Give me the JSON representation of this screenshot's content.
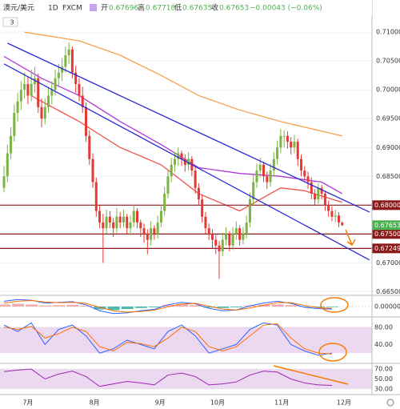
{
  "chart_data": {
    "type": "candlestick",
    "symbol": "澳元/美元",
    "interval": "1D",
    "source": "FXCM",
    "open_label": "开",
    "high_label": "高",
    "low_label": "低",
    "close_label": "收",
    "change": "−0.00043 (−0.06%)",
    "legend_count": "3",
    "up_color": "#7cb342",
    "down_color": "#e53935",
    "candles": [
      [
        0.683,
        0.6868,
        0.6822,
        0.685
      ],
      [
        0.685,
        0.6905,
        0.684,
        0.689
      ],
      [
        0.689,
        0.6935,
        0.688,
        0.692
      ],
      [
        0.692,
        0.6975,
        0.691,
        0.696
      ],
      [
        0.696,
        0.6995,
        0.6945,
        0.698
      ],
      [
        0.698,
        0.7015,
        0.6965,
        0.7
      ],
      [
        0.7,
        0.703,
        0.6985,
        0.701
      ],
      [
        0.701,
        0.7022,
        0.6975,
        0.699
      ],
      [
        0.699,
        0.7035,
        0.698,
        0.701
      ],
      [
        0.701,
        0.704,
        0.6995,
        0.702
      ],
      [
        0.702,
        0.7028,
        0.696,
        0.697
      ],
      [
        0.697,
        0.6985,
        0.6935,
        0.695
      ],
      [
        0.695,
        0.6985,
        0.694,
        0.697
      ],
      [
        0.697,
        0.7005,
        0.696,
        0.699
      ],
      [
        0.699,
        0.7015,
        0.6975,
        0.7
      ],
      [
        0.7,
        0.7035,
        0.699,
        0.702
      ],
      [
        0.702,
        0.7045,
        0.7005,
        0.703
      ],
      [
        0.703,
        0.7055,
        0.7015,
        0.704
      ],
      [
        0.704,
        0.7075,
        0.703,
        0.706
      ],
      [
        0.706,
        0.7082,
        0.7045,
        0.707
      ],
      [
        0.707,
        0.7075,
        0.702,
        0.703
      ],
      [
        0.703,
        0.7042,
        0.6995,
        0.701
      ],
      [
        0.701,
        0.702,
        0.698,
        0.699
      ],
      [
        0.699,
        0.7005,
        0.696,
        0.697
      ],
      [
        0.697,
        0.6978,
        0.691,
        0.692
      ],
      [
        0.692,
        0.693,
        0.687,
        0.688
      ],
      [
        0.688,
        0.689,
        0.683,
        0.684
      ],
      [
        0.684,
        0.6848,
        0.678,
        0.679
      ],
      [
        0.679,
        0.68,
        0.676,
        0.677
      ],
      [
        0.677,
        0.6785,
        0.67,
        0.676
      ],
      [
        0.676,
        0.6792,
        0.675,
        0.678
      ],
      [
        0.678,
        0.679,
        0.676,
        0.677
      ],
      [
        0.677,
        0.6778,
        0.6745,
        0.676
      ],
      [
        0.676,
        0.6795,
        0.6752,
        0.678
      ],
      [
        0.678,
        0.6788,
        0.676,
        0.677
      ],
      [
        0.677,
        0.6792,
        0.6762,
        0.678
      ],
      [
        0.678,
        0.6785,
        0.675,
        0.676
      ],
      [
        0.676,
        0.6782,
        0.6748,
        0.677
      ],
      [
        0.677,
        0.68,
        0.6762,
        0.679
      ],
      [
        0.679,
        0.6795,
        0.676,
        0.677
      ],
      [
        0.677,
        0.6775,
        0.6745,
        0.676
      ],
      [
        0.676,
        0.6768,
        0.6735,
        0.675
      ],
      [
        0.675,
        0.6758,
        0.6715,
        0.674
      ],
      [
        0.674,
        0.6772,
        0.673,
        0.676
      ],
      [
        0.676,
        0.6765,
        0.674,
        0.675
      ],
      [
        0.675,
        0.6782,
        0.6742,
        0.677
      ],
      [
        0.677,
        0.68,
        0.6762,
        0.679
      ],
      [
        0.679,
        0.6832,
        0.6782,
        0.682
      ],
      [
        0.682,
        0.6862,
        0.6812,
        0.685
      ],
      [
        0.685,
        0.6882,
        0.684,
        0.687
      ],
      [
        0.687,
        0.6892,
        0.6858,
        0.688
      ],
      [
        0.688,
        0.69,
        0.6868,
        0.689
      ],
      [
        0.689,
        0.6895,
        0.6868,
        0.688
      ],
      [
        0.688,
        0.6888,
        0.6858,
        0.687
      ],
      [
        0.687,
        0.6892,
        0.686,
        0.688
      ],
      [
        0.688,
        0.6885,
        0.685,
        0.686
      ],
      [
        0.686,
        0.6868,
        0.682,
        0.683
      ],
      [
        0.683,
        0.6838,
        0.68,
        0.681
      ],
      [
        0.681,
        0.6818,
        0.677,
        0.678
      ],
      [
        0.678,
        0.6788,
        0.675,
        0.676
      ],
      [
        0.676,
        0.6768,
        0.674,
        0.675
      ],
      [
        0.675,
        0.6758,
        0.6725,
        0.674
      ],
      [
        0.674,
        0.6748,
        0.6715,
        0.673
      ],
      [
        0.673,
        0.6738,
        0.6672,
        0.672
      ],
      [
        0.672,
        0.6752,
        0.6712,
        0.674
      ],
      [
        0.674,
        0.6762,
        0.673,
        0.675
      ],
      [
        0.675,
        0.6755,
        0.672,
        0.673
      ],
      [
        0.673,
        0.6762,
        0.6722,
        0.675
      ],
      [
        0.675,
        0.6772,
        0.674,
        0.676
      ],
      [
        0.676,
        0.6765,
        0.673,
        0.674
      ],
      [
        0.674,
        0.6762,
        0.6732,
        0.675
      ],
      [
        0.675,
        0.6782,
        0.6742,
        0.677
      ],
      [
        0.677,
        0.6822,
        0.6762,
        0.681
      ],
      [
        0.681,
        0.6852,
        0.68,
        0.684
      ],
      [
        0.684,
        0.6872,
        0.683,
        0.686
      ],
      [
        0.686,
        0.6882,
        0.6848,
        0.687
      ],
      [
        0.687,
        0.6875,
        0.684,
        0.685
      ],
      [
        0.685,
        0.6858,
        0.6828,
        0.684
      ],
      [
        0.684,
        0.6872,
        0.6832,
        0.686
      ],
      [
        0.686,
        0.6892,
        0.685,
        0.688
      ],
      [
        0.688,
        0.6912,
        0.687,
        0.69
      ],
      [
        0.69,
        0.6932,
        0.689,
        0.692
      ],
      [
        0.692,
        0.693,
        0.69,
        0.692
      ],
      [
        0.692,
        0.6928,
        0.6898,
        0.691
      ],
      [
        0.691,
        0.6918,
        0.6888,
        0.69
      ],
      [
        0.69,
        0.6922,
        0.689,
        0.691
      ],
      [
        0.691,
        0.6915,
        0.6868,
        0.688
      ],
      [
        0.688,
        0.6888,
        0.685,
        0.686
      ],
      [
        0.686,
        0.6868,
        0.684,
        0.685
      ],
      [
        0.685,
        0.6858,
        0.6828,
        0.684
      ],
      [
        0.684,
        0.6848,
        0.681,
        0.682
      ],
      [
        0.682,
        0.6828,
        0.68,
        0.681
      ],
      [
        0.681,
        0.6838,
        0.6802,
        0.683
      ],
      [
        0.683,
        0.6835,
        0.681,
        0.682
      ],
      [
        0.682,
        0.6825,
        0.679,
        0.68
      ],
      [
        0.68,
        0.6808,
        0.678,
        0.679
      ],
      [
        0.679,
        0.6798,
        0.6772,
        0.678
      ],
      [
        0.678,
        0.6792,
        0.677,
        0.6782
      ],
      [
        0.6782,
        0.6788,
        0.6762,
        0.677
      ],
      [
        0.67696,
        0.67718,
        0.67635,
        0.67653
      ]
    ],
    "ylim": [
      0.6645,
      0.7128
    ],
    "yticks": [
      {
        "value": 0.71,
        "label": "0.71000"
      },
      {
        "value": 0.705,
        "label": "0.70500"
      },
      {
        "value": 0.7,
        "label": "0.70000"
      },
      {
        "value": 0.695,
        "label": "0.69500"
      },
      {
        "value": 0.69,
        "label": "0.69000"
      },
      {
        "value": 0.685,
        "label": "0.68500"
      },
      {
        "value": 0.67,
        "label": "0.67000"
      },
      {
        "value": 0.665,
        "label": "0.66500"
      }
    ],
    "levels": [
      {
        "value": 0.68,
        "label": "0.68000"
      },
      {
        "value": 0.675,
        "label": "0.67500"
      },
      {
        "value": 0.6725,
        "label": "0.67249"
      }
    ],
    "level_color": "#8b1a1a",
    "last_color": "#4caf50",
    "moving_averages": [
      {
        "color": "#f5a04a",
        "x": [
          6,
          22,
          34,
          46,
          57,
          69,
          81,
          99
        ],
        "values": [
          0.71,
          0.7085,
          0.706,
          0.7025,
          0.699,
          0.6965,
          0.6945,
          0.692
        ]
      },
      {
        "color": "#b03ad6",
        "x": [
          0,
          11,
          22,
          34,
          46,
          57,
          69,
          81,
          93,
          99
        ],
        "values": [
          0.7058,
          0.702,
          0.699,
          0.6945,
          0.6905,
          0.6865,
          0.6855,
          0.685,
          0.684,
          0.682
        ]
      },
      {
        "color": "#ef5350",
        "x": [
          8,
          11,
          22,
          34,
          46,
          57,
          69,
          81,
          88,
          99
        ],
        "values": [
          0.699,
          0.698,
          0.6945,
          0.69,
          0.687,
          0.682,
          0.679,
          0.683,
          0.6825,
          0.6805
        ]
      }
    ],
    "trendlines": [
      {
        "color": "#2b2bd6",
        "x": [
          1,
          107
        ],
        "values": [
          0.7081,
          0.6788
        ]
      },
      {
        "color": "#2b2bd6",
        "x": [
          0,
          107
        ],
        "values": [
          0.7045,
          0.6705
        ]
      }
    ],
    "month_labels": [
      {
        "index": 7,
        "label": "7月"
      },
      {
        "index": 26.5,
        "label": "8月"
      },
      {
        "index": 45.7,
        "label": "9月"
      },
      {
        "index": 62.5,
        "label": "10月"
      },
      {
        "index": 81.3,
        "label": "11月"
      },
      {
        "index": 99.5,
        "label": "12月"
      }
    ],
    "indicator_x": [
      0,
      4,
      8,
      12,
      16,
      20,
      24,
      28,
      32,
      36,
      40,
      44,
      48,
      52,
      56,
      60,
      64,
      68,
      72,
      76,
      80,
      84,
      88,
      92,
      96
    ],
    "macd": {
      "ylim": [
        -0.0025,
        0.0025
      ],
      "yticks": [
        {
          "value": 0,
          "label": "0.00000"
        }
      ],
      "hist": [
        0.0006,
        0.0008,
        0.0006,
        0.0003,
        0.0004,
        0.0005,
        0.0002,
        -0.0008,
        -0.001,
        -0.0007,
        -0.0004,
        -0.0002,
        0.0005,
        0.0007,
        0.0004,
        -0.0003,
        -0.0004,
        -0.0002,
        0.0003,
        0.0005,
        0.0006,
        0.0004,
        -0.0001,
        -0.0002,
        -0.00015
      ],
      "macd": [
        0.0015,
        0.002,
        0.0018,
        0.001,
        0.0012,
        0.0014,
        0.0005,
        -0.0012,
        -0.002,
        -0.0018,
        -0.0012,
        -0.0008,
        0.0005,
        0.0012,
        0.0008,
        -0.0005,
        -0.0012,
        -0.001,
        0.0002,
        0.001,
        0.0015,
        0.0009,
        -0.0002,
        -0.0006,
        -0.0007
      ],
      "signal": [
        0.001,
        0.0015,
        0.0017,
        0.0013,
        0.0011,
        0.0012,
        0.0009,
        -0.0002,
        -0.0012,
        -0.0016,
        -0.0014,
        -0.001,
        -0.0001,
        0.0007,
        0.0009,
        0.0001,
        -0.0007,
        -0.001,
        -0.0004,
        0.0004,
        0.0011,
        0.0011,
        0.0003,
        -0.0003,
        -0.0005
      ]
    },
    "stoch": {
      "ylim": [
        0,
        100
      ],
      "band": [
        20,
        80
      ],
      "yticks": [
        {
          "value": 80,
          "label": "80.00"
        },
        {
          "value": 40,
          "label": "40.00"
        }
      ],
      "k": [
        85,
        70,
        90,
        40,
        75,
        85,
        60,
        20,
        30,
        50,
        40,
        30,
        70,
        85,
        60,
        20,
        30,
        40,
        75,
        90,
        85,
        40,
        25,
        15,
        20
      ],
      "d": [
        80,
        75,
        82,
        55,
        65,
        80,
        70,
        35,
        25,
        45,
        42,
        35,
        55,
        80,
        70,
        35,
        25,
        35,
        60,
        85,
        88,
        55,
        30,
        20,
        18
      ]
    },
    "rsi": {
      "ylim": [
        20,
        80
      ],
      "band": [
        30,
        70
      ],
      "yticks": [
        {
          "value": 70,
          "label": "70.00"
        },
        {
          "value": 50,
          "label": "50.00"
        },
        {
          "value": 30,
          "label": "30.00"
        }
      ],
      "values": [
        65,
        68,
        70,
        50,
        60,
        66,
        55,
        35,
        40,
        45,
        42,
        38,
        58,
        62,
        55,
        38,
        40,
        44,
        58,
        66,
        64,
        50,
        42,
        38,
        37
      ]
    }
  }
}
